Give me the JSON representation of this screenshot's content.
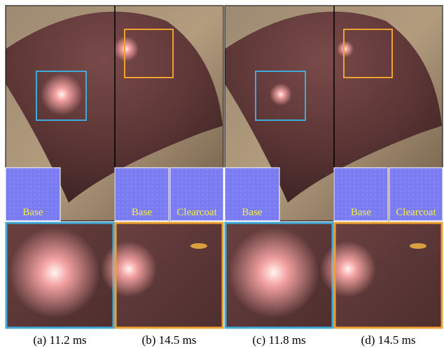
{
  "panels": [
    {
      "caption": "(a) 11.2 ms",
      "maps": [
        "Base"
      ]
    },
    {
      "caption": "(b) 14.5 ms",
      "maps": [
        "Base",
        "Clearcoat"
      ]
    },
    {
      "caption": "(c) 11.8 ms",
      "maps": [
        "Base"
      ]
    },
    {
      "caption": "(d) 14.5 ms",
      "maps": [
        "Base",
        "Clearcoat"
      ]
    }
  ]
}
